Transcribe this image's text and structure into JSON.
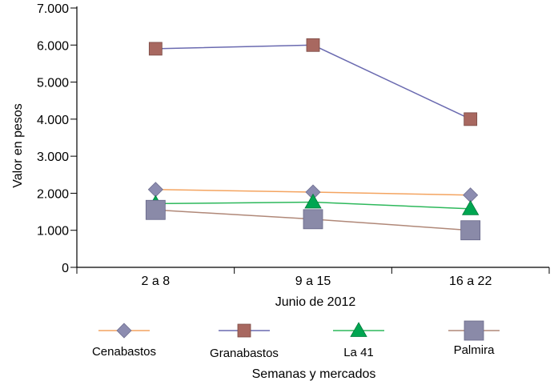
{
  "chart_data": {
    "type": "line",
    "categories": [
      "2 a 8",
      "9 a 15",
      "16 a 22"
    ],
    "xlabel": "Junio de 2012",
    "ylabel": "Valor en pesos",
    "caption": "Semanas y mercados",
    "ylim": [
      0,
      7000
    ],
    "yticks": [
      "0",
      "1.000",
      "2.000",
      "3.000",
      "4.000",
      "5.000",
      "6.000",
      "7.000"
    ],
    "grid": false,
    "legend_position": "bottom",
    "series": [
      {
        "name": "Cenabastos",
        "values": [
          2100,
          2030,
          1950
        ],
        "line_color": "#F4A460",
        "marker": "diamond",
        "marker_color": "#8C8CB0"
      },
      {
        "name": "Granabastos",
        "values": [
          5900,
          6000,
          4000
        ],
        "line_color": "#6A6AB0",
        "marker": "square",
        "marker_color": "#A86860"
      },
      {
        "name": "La 41",
        "values": [
          1720,
          1760,
          1580
        ],
        "line_color": "#2DB85B",
        "marker": "triangle",
        "marker_color": "#00A651"
      },
      {
        "name": "Palmira",
        "values": [
          1550,
          1300,
          1000
        ],
        "line_color": "#B08878",
        "marker": "square-large",
        "marker_color": "#8A8AA8"
      }
    ]
  }
}
